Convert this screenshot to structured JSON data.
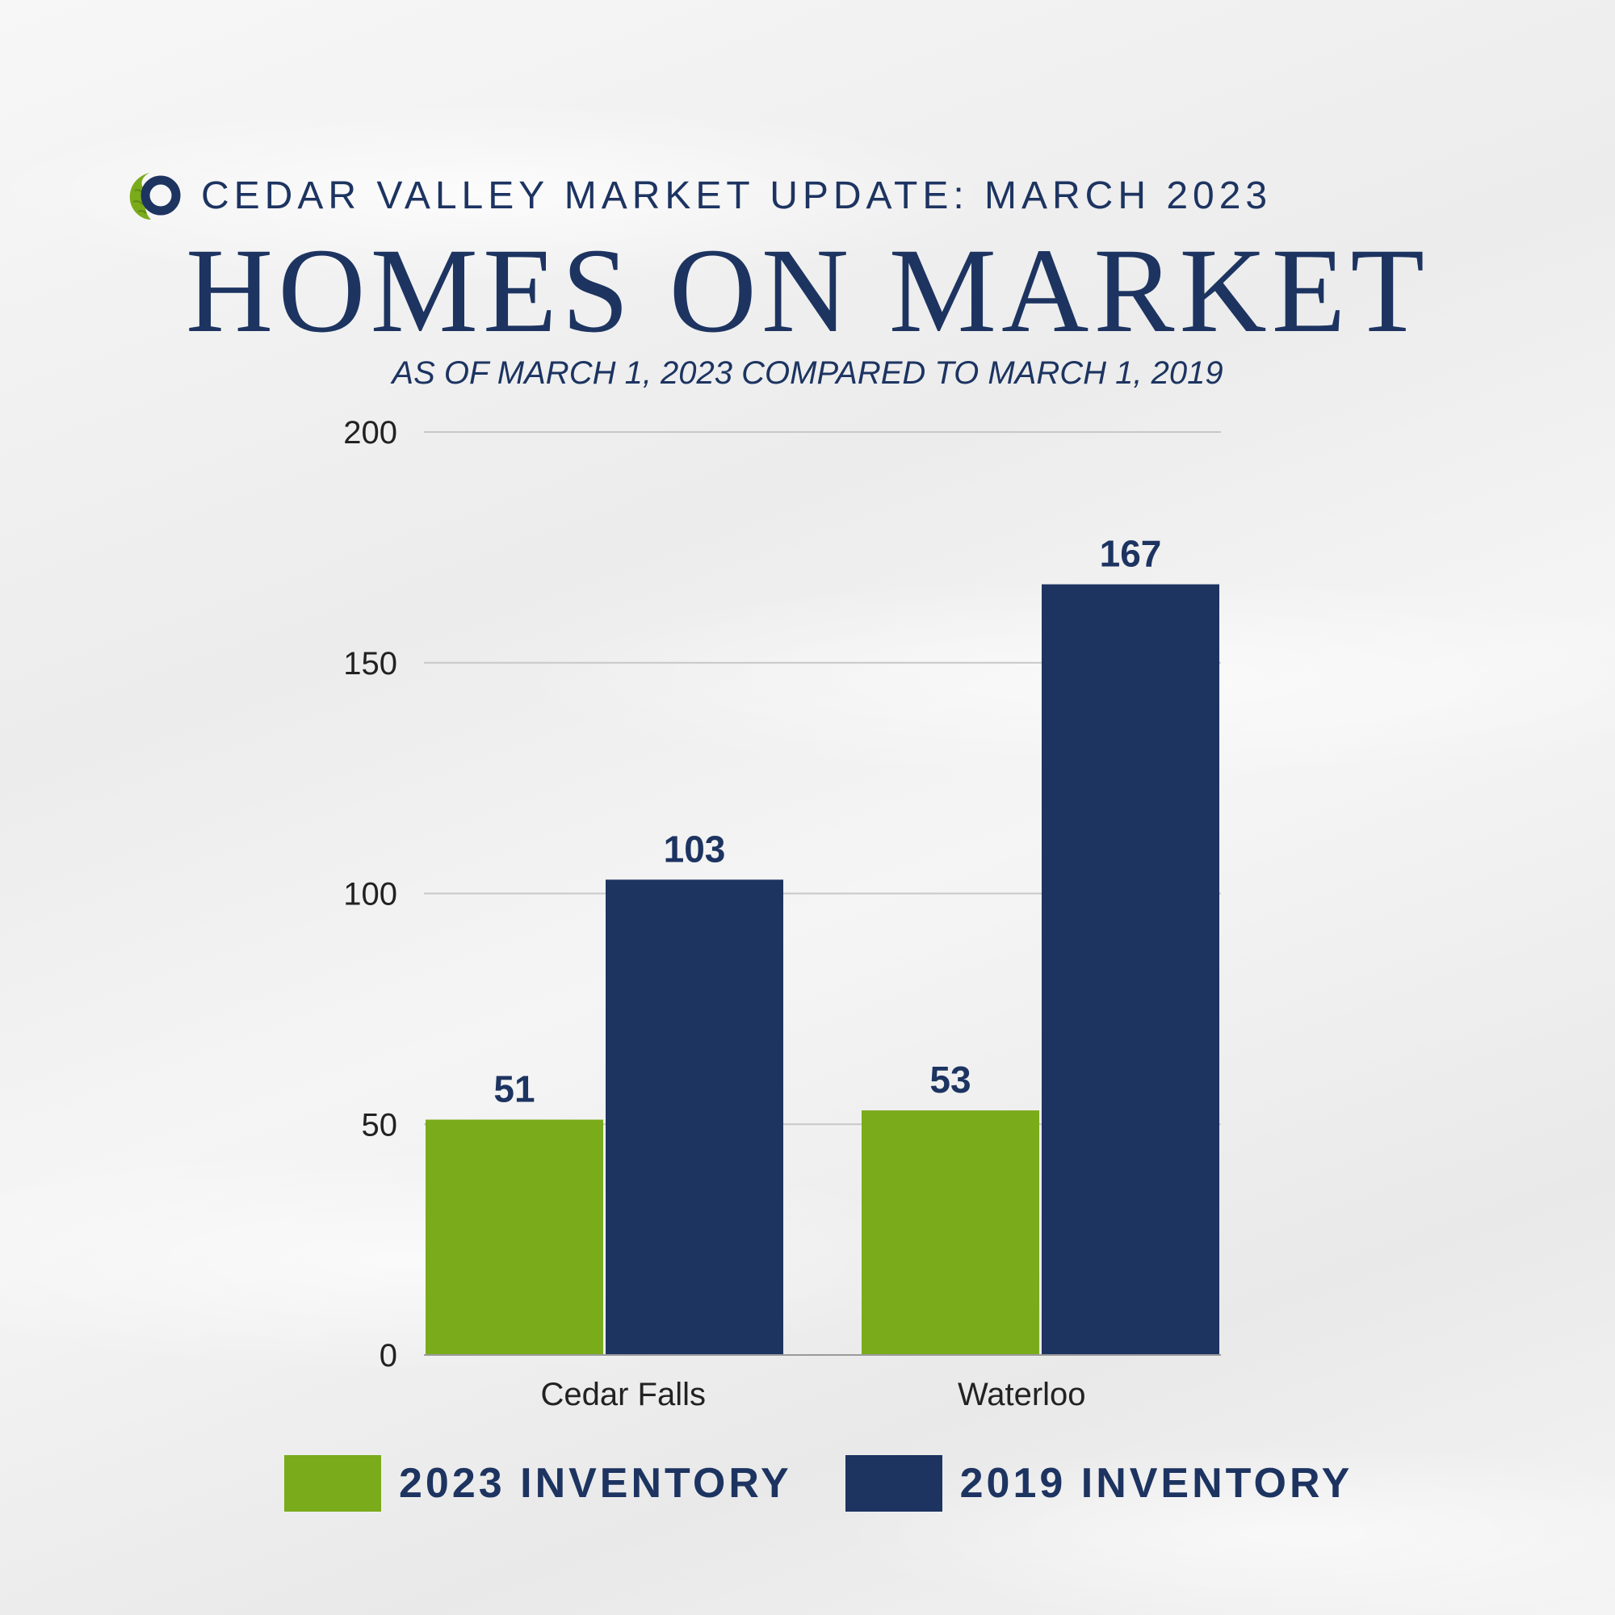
{
  "header": {
    "overline": "CEDAR VALLEY MARKET UPDATE: MARCH 2023",
    "title": "HOMES ON MARKET",
    "subtitle": "AS OF MARCH 1, 2023 COMPARED TO MARCH 1, 2019"
  },
  "colors": {
    "green": "#7aab1b",
    "navy": "#1d3461",
    "grid": "#c8c8c8"
  },
  "chart_data": {
    "type": "bar",
    "categories": [
      "Cedar Falls",
      "Waterloo"
    ],
    "series": [
      {
        "name": "2023 INVENTORY",
        "values": [
          51,
          53
        ],
        "color": "#7aab1b"
      },
      {
        "name": "2019 INVENTORY",
        "values": [
          103,
          167
        ],
        "color": "#1d3461"
      }
    ],
    "ylim": [
      0,
      200
    ],
    "yticks": [
      0,
      50,
      100,
      150,
      200
    ],
    "grid": true,
    "legend_position": "bottom"
  }
}
